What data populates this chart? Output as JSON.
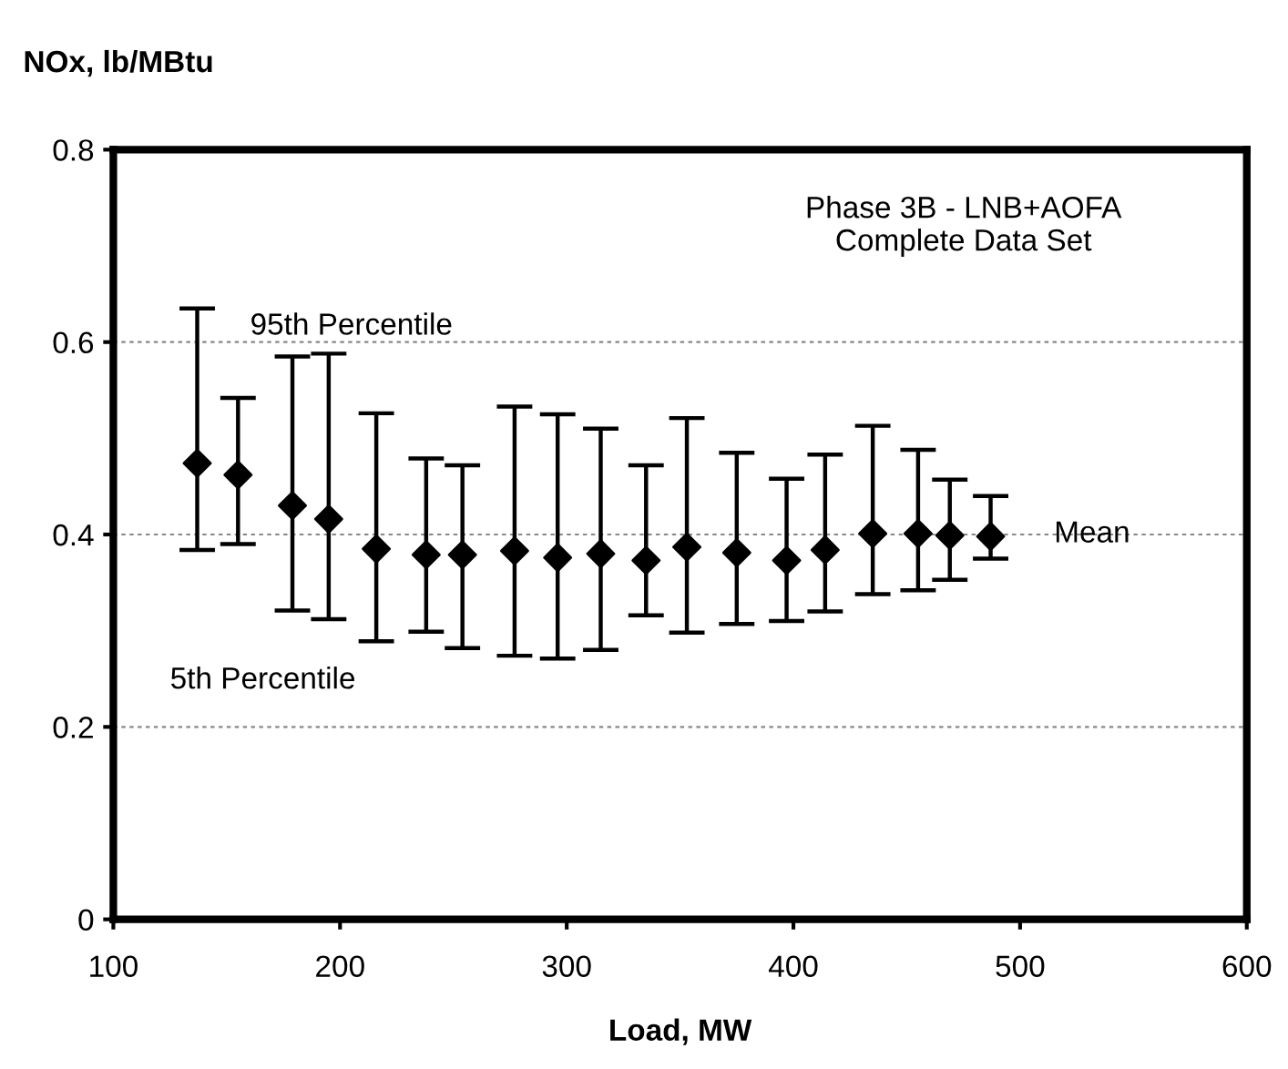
{
  "chart_data": {
    "type": "scatter",
    "ylabel": "NOx, lb/MBtu",
    "xlabel": "Load, MW",
    "annotations": [
      "Phase 3B - LNB+AOFA\nComplete Data Set",
      "95th Percentile",
      "5th Percentile",
      "Mean"
    ],
    "x": [
      137,
      155,
      179,
      195,
      216,
      238,
      254,
      277,
      296,
      315,
      335,
      353,
      375,
      397,
      414,
      435,
      455,
      469,
      487
    ],
    "series": [
      {
        "color": "#000000",
        "values": [
          0.474,
          0.462,
          0.43,
          0.416,
          0.385,
          0.379,
          0.379,
          0.383,
          0.376,
          0.38,
          0.373,
          0.387,
          0.381,
          0.373,
          0.384,
          0.401,
          0.401,
          0.399,
          0.398
        ],
        "errors": [
          [
            0.384,
            0.635
          ],
          [
            0.39,
            0.542
          ],
          [
            0.321,
            0.585
          ],
          [
            0.312,
            0.588
          ],
          [
            0.289,
            0.526
          ],
          [
            0.299,
            0.479
          ],
          [
            0.282,
            0.472
          ],
          [
            0.274,
            0.533
          ],
          [
            0.271,
            0.525
          ],
          [
            0.28,
            0.51
          ],
          [
            0.316,
            0.472
          ],
          [
            0.298,
            0.521
          ],
          [
            0.307,
            0.485
          ],
          [
            0.31,
            0.458
          ],
          [
            0.32,
            0.483
          ],
          [
            0.338,
            0.513
          ],
          [
            0.342,
            0.488
          ],
          [
            0.353,
            0.457
          ],
          [
            0.375,
            0.44
          ]
        ]
      }
    ],
    "xlim": [
      100,
      600
    ],
    "xticks": [
      100,
      200,
      300,
      400,
      500,
      600
    ],
    "ylim": [
      0,
      0.8
    ],
    "yticks": [
      0,
      0.2,
      0.4,
      0.6,
      0.8
    ],
    "grid": "y",
    "marker": "diamond",
    "legend": false
  }
}
